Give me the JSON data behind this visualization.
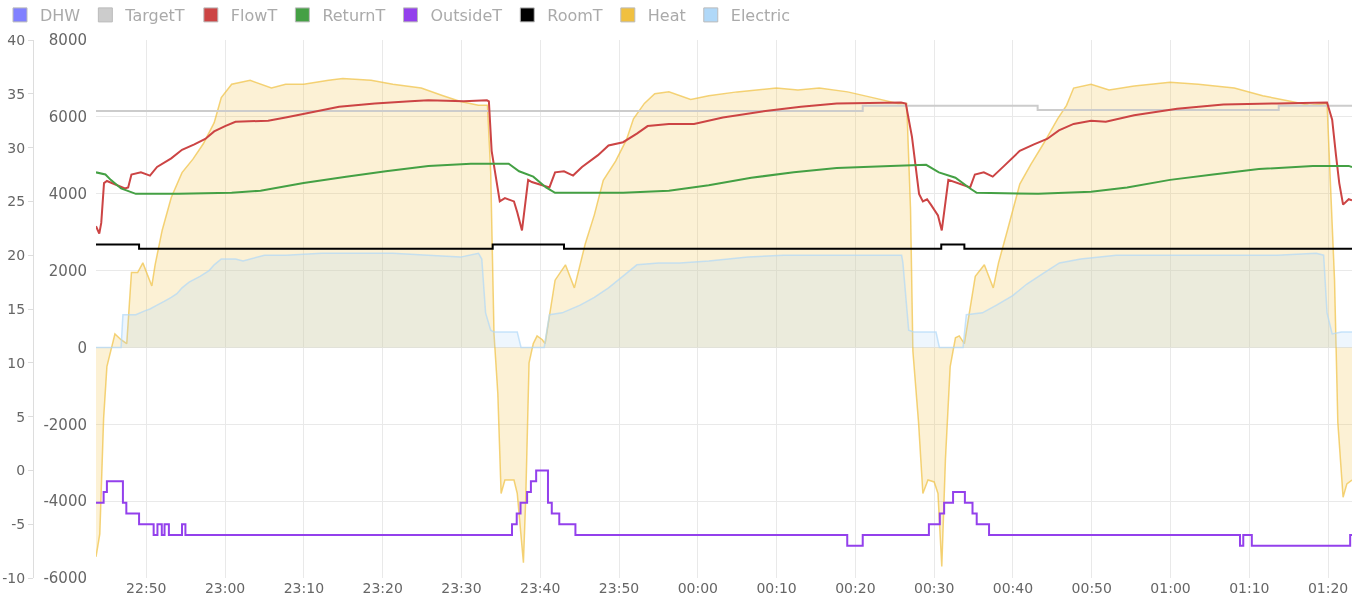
{
  "chart_data": {
    "type": "line",
    "legend": "top left",
    "grid": true,
    "xlim": [
      "2000-01-01T22:43:37",
      "2000-01-02T01:23:02"
    ],
    "xticks": [
      {
        "value": "2000-01-01T22:50",
        "label": "22:50"
      },
      {
        "value": "2000-01-01T23:00",
        "label": "23:00"
      },
      {
        "value": "2000-01-01T23:10",
        "label": "23:10"
      },
      {
        "value": "2000-01-01T23:20",
        "label": "23:20"
      },
      {
        "value": "2000-01-01T23:30",
        "label": "23:30"
      },
      {
        "value": "2000-01-01T23:40",
        "label": "23:40"
      },
      {
        "value": "2000-01-01T23:50",
        "label": "23:50"
      },
      {
        "value": "2000-01-02T00:00",
        "label": "00:00"
      },
      {
        "value": "2000-01-02T00:10",
        "label": "00:10"
      },
      {
        "value": "2000-01-02T00:20",
        "label": "00:20"
      },
      {
        "value": "2000-01-02T00:30",
        "label": "00:30"
      },
      {
        "value": "2000-01-02T00:40",
        "label": "00:40"
      },
      {
        "value": "2000-01-02T00:50",
        "label": "00:50"
      },
      {
        "value": "2000-01-02T01:00",
        "label": "01:00"
      },
      {
        "value": "2000-01-02T01:10",
        "label": "01:10"
      },
      {
        "value": "2000-01-02T01:20",
        "label": "01:20"
      }
    ],
    "ylim": [
      -10,
      40
    ],
    "yticks": [
      -10,
      -5,
      0,
      5,
      10,
      15,
      20,
      25,
      30,
      35,
      40
    ],
    "y2lim": [
      -6000,
      8000
    ],
    "y2ticks": [
      -6000,
      -4000,
      -2000,
      0,
      2000,
      4000,
      6000,
      8000
    ],
    "series": [
      {
        "name": "DHW",
        "type": "area",
        "axis": "y2",
        "color": "#8080ff"
      },
      {
        "name": "TargetT",
        "type": "step",
        "color": "#cccccc",
        "x": [
          "2000-01-01T22:43:37",
          "2000-01-02T00:20:56",
          "2000-01-02T00:43:08",
          "2000-01-02T01:13:44",
          "2000-01-02T01:23:02"
        ],
        "values": [
          33.4,
          33.9,
          33.5,
          33.9,
          33.9
        ]
      },
      {
        "name": "FlowT",
        "color": "#cc4444",
        "x": [
          "2000-01-01T22:43:37",
          "2000-01-01T22:44:02",
          "2000-01-01T22:44:17",
          "2000-01-01T22:44:38",
          "2000-01-01T22:45:00",
          "2000-01-01T22:47:17",
          "2000-01-01T22:47:42",
          "2000-01-01T22:48:07",
          "2000-01-01T22:49:19",
          "2000-01-01T22:50:28",
          "2000-01-01T22:51:22",
          "2000-01-01T22:53:10",
          "2000-01-01T22:54:32",
          "2000-01-01T22:56:06",
          "2000-01-01T22:57:29",
          "2000-01-01T22:58:37",
          "2000-01-01T23:00:00",
          "2000-01-01T23:01:19",
          "2000-01-01T23:05:28",
          "2000-01-01T23:07:41",
          "2000-01-01T23:10:23",
          "2000-01-01T23:14:28",
          "2000-01-01T23:19:01",
          "2000-01-01T23:23:31",
          "2000-01-01T23:25:48",
          "2000-01-01T23:30:18",
          "2000-01-01T23:33:14",
          "2000-01-01T23:33:29",
          "2000-01-01T23:33:50",
          "2000-01-01T23:34:52",
          "2000-01-01T23:35:31",
          "2000-01-01T23:36:40",
          "2000-01-01T23:37:05",
          "2000-01-01T23:37:41",
          "2000-01-01T23:38:28",
          "2000-01-01T23:38:56",
          "2000-01-01T23:41:10",
          "2000-01-01T23:41:53",
          "2000-01-01T23:43:01",
          "2000-01-01T23:44:10",
          "2000-01-01T23:45:18",
          "2000-01-01T23:47:20",
          "2000-01-01T23:48:40",
          "2000-01-01T23:50:31",
          "2000-01-01T23:52:16",
          "2000-01-01T23:53:38",
          "2000-01-01T23:56:20",
          "2000-01-01T23:59:31",
          "2000-01-02T00:03:11",
          "2000-01-02T00:08:35",
          "2000-01-02T00:13:05",
          "2000-01-02T00:17:38",
          "2000-01-02T00:25:48",
          "2000-01-02T00:26:24",
          "2000-01-02T00:27:11",
          "2000-01-02T00:28:05",
          "2000-01-02T00:28:34",
          "2000-01-02T00:29:06",
          "2000-01-02T00:29:35",
          "2000-01-02T00:30:29",
          "2000-01-02T00:30:58",
          "2000-01-02T00:31:48",
          "2000-01-02T00:34:34",
          "2000-01-02T00:35:10",
          "2000-01-02T00:36:18",
          "2000-01-02T00:37:26",
          "2000-01-02T00:38:53",
          "2000-01-02T00:40:52",
          "2000-01-02T00:42:40",
          "2000-01-02T00:44:20",
          "2000-01-02T00:45:50",
          "2000-01-02T00:47:42",
          "2000-01-02T00:49:55",
          "2000-01-02T00:51:47",
          "2000-01-02T00:55:23",
          "2000-01-02T01:00:50",
          "2000-01-02T01:06:43",
          "2000-01-02T01:13:30",
          "2000-01-02T01:19:52",
          "2000-01-02T01:20:31",
          "2000-01-02T01:21:00",
          "2000-01-02T01:21:25",
          "2000-01-02T01:21:54",
          "2000-01-02T01:22:37",
          "2000-01-02T01:23:02"
        ],
        "values": [
          22.7,
          22.0,
          23.0,
          26.7,
          26.9,
          26.2,
          26.3,
          27.5,
          27.7,
          27.4,
          28.2,
          29.0,
          29.8,
          30.3,
          30.8,
          31.5,
          32.0,
          32.4,
          32.5,
          32.8,
          33.2,
          33.8,
          34.1,
          34.3,
          34.4,
          34.3,
          34.4,
          34.3,
          29.7,
          25.0,
          25.3,
          25.0,
          24.0,
          22.3,
          27.0,
          26.8,
          26.3,
          27.7,
          27.8,
          27.4,
          28.2,
          29.3,
          30.2,
          30.5,
          31.3,
          32.0,
          32.2,
          32.2,
          32.8,
          33.4,
          33.8,
          34.1,
          34.2,
          34.1,
          31.0,
          25.7,
          25.0,
          25.2,
          24.7,
          23.7,
          22.3,
          27.0,
          26.3,
          27.5,
          27.7,
          27.3,
          28.3,
          29.7,
          30.3,
          30.8,
          31.6,
          32.2,
          32.5,
          32.4,
          33.0,
          33.6,
          34.0,
          34.1,
          34.2,
          32.6,
          29.3,
          26.7,
          24.7,
          25.2,
          25.1
        ]
      },
      {
        "name": "ReturnT",
        "color": "#44a044",
        "x": [
          "2000-01-01T22:43:37",
          "2000-01-01T22:44:49",
          "2000-01-01T22:45:29",
          "2000-01-01T22:46:48",
          "2000-01-01T22:48:40",
          "2000-01-01T22:54:04",
          "2000-01-01T23:00:50",
          "2000-01-01T23:04:30",
          "2000-01-01T23:09:58",
          "2000-01-01T23:15:22",
          "2000-01-01T23:20:24",
          "2000-01-01T23:25:48",
          "2000-01-01T23:31:12",
          "2000-01-01T23:36:00",
          "2000-01-01T23:37:19",
          "2000-01-01T23:39:07",
          "2000-01-01T23:40:44",
          "2000-01-01T23:41:53",
          "2000-01-01T23:45:54",
          "2000-01-01T23:50:31",
          "2000-01-01T23:56:20",
          "2000-01-02T00:01:23",
          "2000-01-02T00:06:47",
          "2000-01-02T00:12:11",
          "2000-01-02T00:17:38",
          "2000-01-02T00:24:29",
          "2000-01-02T00:28:59",
          "2000-01-02T00:30:36",
          "2000-01-02T00:32:42",
          "2000-01-02T00:34:34",
          "2000-01-02T00:35:24",
          "2000-01-02T00:43:12",
          "2000-01-02T00:49:55",
          "2000-01-02T00:54:29",
          "2000-01-02T00:59:56",
          "2000-01-02T01:05:24",
          "2000-01-02T01:11:13",
          "2000-01-02T01:18:04",
          "2000-01-02T01:22:37",
          "2000-01-02T01:23:02"
        ],
        "values": [
          27.7,
          27.5,
          27.0,
          26.2,
          25.7,
          25.7,
          25.8,
          26.0,
          26.7,
          27.3,
          27.8,
          28.3,
          28.5,
          28.5,
          27.8,
          27.3,
          26.3,
          25.8,
          25.8,
          25.8,
          26.0,
          26.5,
          27.2,
          27.7,
          28.1,
          28.3,
          28.4,
          27.7,
          27.2,
          26.2,
          25.8,
          25.7,
          25.9,
          26.3,
          27.0,
          27.5,
          28.0,
          28.3,
          28.3,
          28.2
        ]
      },
      {
        "name": "OutsideT",
        "type": "step",
        "color": "#9340ec",
        "x": [
          "2000-01-01T22:43:37",
          "2000-01-01T22:44:35",
          "2000-01-01T22:45:00",
          "2000-01-01T22:47:02",
          "2000-01-01T22:47:28",
          "2000-01-01T22:49:05",
          "2000-01-01T22:50:56",
          "2000-01-01T22:51:25",
          "2000-01-01T22:51:58",
          "2000-01-01T22:52:19",
          "2000-01-01T22:52:52",
          "2000-01-01T22:54:32",
          "2000-01-01T22:54:58",
          "2000-01-01T23:36:25",
          "2000-01-01T23:37:01",
          "2000-01-01T23:37:30",
          "2000-01-01T23:38:20",
          "2000-01-01T23:38:49",
          "2000-01-01T23:39:29",
          "2000-01-01T23:40:59",
          "2000-01-01T23:41:28",
          "2000-01-01T23:42:25",
          "2000-01-01T23:44:28",
          "2000-01-02T00:18:58",
          "2000-01-02T00:20:56",
          "2000-01-02T00:29:20",
          "2000-01-02T00:30:43",
          "2000-01-02T00:31:16",
          "2000-01-02T00:32:24",
          "2000-01-02T00:33:54",
          "2000-01-02T00:34:52",
          "2000-01-02T00:35:24",
          "2000-01-02T00:36:58",
          "2000-01-02T01:08:49",
          "2000-01-02T01:09:14",
          "2000-01-02T01:10:19",
          "2000-01-02T01:22:48",
          "2000-01-02T01:23:02"
        ],
        "values": [
          -3,
          -2,
          -1,
          -3,
          -4,
          -5,
          -6,
          -5,
          -6,
          -5,
          -6,
          -5,
          -6,
          -5,
          -4,
          -3,
          -2,
          -1,
          0,
          -3,
          -4,
          -5,
          -6,
          -7,
          -6,
          -5,
          -4,
          -3,
          -2,
          -3,
          -4,
          -5,
          -6,
          -7,
          -6,
          -7,
          -6,
          -6
        ]
      },
      {
        "name": "RoomT",
        "type": "step",
        "color": "#000000",
        "x": [
          "2000-01-01T22:43:37",
          "2000-01-01T22:49:05",
          "2000-01-01T23:33:58",
          "2000-01-01T23:43:01",
          "2000-01-02T00:30:54",
          "2000-01-02T00:33:50",
          "2000-01-02T01:23:02"
        ],
        "values": [
          21.0,
          20.6,
          21.0,
          20.6,
          21.0,
          20.6,
          20.6
        ]
      },
      {
        "name": "Heat",
        "type": "area",
        "axis": "y2",
        "color": "#f0c040",
        "x": [
          "2000-01-01T22:43:37",
          "2000-01-01T22:44:06",
          "2000-01-01T22:44:35",
          "2000-01-01T22:45:00",
          "2000-01-01T22:45:43",
          "2000-01-01T22:46:01",
          "2000-01-01T22:46:48",
          "2000-01-01T22:47:31",
          "2000-01-01T22:48:07",
          "2000-01-01T22:48:54",
          "2000-01-01T22:49:34",
          "2000-01-01T22:50:42",
          "2000-01-01T22:51:07",
          "2000-01-01T22:52:01",
          "2000-01-01T22:53:10",
          "2000-01-01T22:54:32",
          "2000-01-01T22:55:55",
          "2000-01-01T22:57:14",
          "2000-01-01T22:58:37",
          "2000-01-01T22:59:31",
          "2000-01-01T23:00:50",
          "2000-01-01T23:03:11",
          "2000-01-01T23:05:53",
          "2000-01-01T23:07:41",
          "2000-01-01T23:09:58",
          "2000-01-01T23:13:08",
          "2000-01-01T23:14:56",
          "2000-01-01T23:18:32",
          "2000-01-01T23:21:18",
          "2000-01-01T23:24:54",
          "2000-01-01T23:27:40",
          "2000-01-01T23:29:53",
          "2000-01-01T23:32:10",
          "2000-01-01T23:33:18",
          "2000-01-01T23:33:43",
          "2000-01-01T23:34:08",
          "2000-01-01T23:34:37",
          "2000-01-01T23:35:02",
          "2000-01-01T23:35:31",
          "2000-01-01T23:36:40",
          "2000-01-01T23:37:05",
          "2000-01-01T23:37:52",
          "2000-01-01T23:38:10",
          "2000-01-01T23:38:35",
          "2000-01-01T23:39:07",
          "2000-01-01T23:39:36",
          "2000-01-01T23:40:16",
          "2000-01-01T23:40:37",
          "2000-01-01T23:41:53",
          "2000-01-01T23:43:12",
          "2000-01-01T23:44:20",
          "2000-01-01T23:45:43",
          "2000-01-01T23:46:52",
          "2000-01-01T23:48:00",
          "2000-01-01T23:49:34",
          "2000-01-01T23:50:56",
          "2000-01-01T23:51:50",
          "2000-01-01T23:53:13",
          "2000-01-01T23:54:32",
          "2000-01-01T23:56:20",
          "2000-01-01T23:59:06",
          "2000-01-02T00:01:23",
          "2000-01-02T00:04:59",
          "2000-01-02T00:09:58",
          "2000-01-02T00:12:43",
          "2000-01-02T00:15:25",
          "2000-01-02T00:19:01",
          "2000-01-02T00:22:12",
          "2000-01-02T00:25:23",
          "2000-01-02T00:26:31",
          "2000-01-02T00:27:00",
          "2000-01-02T00:27:18",
          "2000-01-02T00:28:01",
          "2000-01-02T00:28:34",
          "2000-01-02T00:29:13",
          "2000-01-02T00:30:00",
          "2000-01-02T00:30:29",
          "2000-01-02T00:30:58",
          "2000-01-02T00:31:26",
          "2000-01-02T00:32:02",
          "2000-01-02T00:32:42",
          "2000-01-02T00:33:11",
          "2000-01-02T00:33:50",
          "2000-01-02T00:35:13",
          "2000-01-02T00:36:22",
          "2000-01-02T00:37:30",
          "2000-01-02T00:38:10",
          "2000-01-02T00:39:18",
          "2000-01-02T00:40:52",
          "2000-01-02T00:42:14",
          "2000-01-02T00:43:52",
          "2000-01-02T00:45:40",
          "2000-01-02T00:46:48",
          "2000-01-02T00:47:42",
          "2000-01-02T00:49:55",
          "2000-01-02T00:52:12",
          "2000-01-02T00:55:23",
          "2000-01-02T00:59:56",
          "2000-01-02T01:03:32",
          "2000-01-02T01:08:06",
          "2000-01-02T01:11:42",
          "2000-01-02T01:15:22",
          "2000-01-02T01:17:38",
          "2000-01-02T01:19:52",
          "2000-01-02T01:20:49",
          "2000-01-02T01:21:14",
          "2000-01-02T01:21:54",
          "2000-01-02T01:22:23",
          "2000-01-02T01:23:02"
        ],
        "values": [
          -5450,
          -4850,
          -1850,
          -500,
          100,
          350,
          200,
          100,
          1950,
          1950,
          2200,
          1600,
          2150,
          3050,
          3900,
          4550,
          4900,
          5300,
          5850,
          6500,
          6850,
          6950,
          6750,
          6850,
          6850,
          6950,
          7000,
          6950,
          6850,
          6750,
          6550,
          6400,
          6300,
          6300,
          4550,
          350,
          -1200,
          -3800,
          -3450,
          -3450,
          -3800,
          -5600,
          -3900,
          -400,
          100,
          300,
          200,
          100,
          1750,
          2150,
          1550,
          2700,
          3450,
          4350,
          4850,
          5400,
          5950,
          6350,
          6600,
          6650,
          6450,
          6550,
          6650,
          6750,
          6700,
          6750,
          6650,
          6500,
          6350,
          6350,
          3600,
          -100,
          -1950,
          -3800,
          -3450,
          -3500,
          -3800,
          -5700,
          -2900,
          -500,
          250,
          300,
          100,
          1850,
          2150,
          1550,
          2200,
          3050,
          4250,
          4750,
          5300,
          5950,
          6300,
          6750,
          6850,
          6700,
          6800,
          6900,
          6850,
          6750,
          6550,
          6400,
          6300,
          6350,
          1750,
          -1950,
          -3900,
          -3550,
          -3450
        ]
      },
      {
        "name": "Electric",
        "type": "area",
        "axis": "y2",
        "color": "#b0d8f8",
        "x": [
          "2000-01-01T22:43:37",
          "2000-01-01T22:46:48",
          "2000-01-01T22:47:02",
          "2000-01-01T22:48:40",
          "2000-01-01T22:49:48",
          "2000-01-01T22:50:28",
          "2000-01-01T22:51:22",
          "2000-01-01T22:52:16",
          "2000-01-01T22:53:10",
          "2000-01-01T22:53:53",
          "2000-01-01T22:54:32",
          "2000-01-01T22:55:26",
          "2000-01-01T22:56:49",
          "2000-01-01T22:57:58",
          "2000-01-01T22:58:37",
          "2000-01-01T22:59:31",
          "2000-01-01T23:01:19",
          "2000-01-01T23:02:17",
          "2000-01-01T23:04:59",
          "2000-01-01T23:07:41",
          "2000-01-01T23:12:14",
          "2000-01-01T23:21:18",
          "2000-01-01T23:25:48",
          "2000-01-01T23:29:53",
          "2000-01-01T23:32:10",
          "2000-01-01T23:32:35",
          "2000-01-01T23:33:04",
          "2000-01-01T23:33:43",
          "2000-01-01T23:34:08",
          "2000-01-01T23:37:05",
          "2000-01-01T23:37:34",
          "2000-01-01T23:40:30",
          "2000-01-01T23:41:10",
          "2000-01-01T23:42:47",
          "2000-01-01T23:45:04",
          "2000-01-01T23:46:52",
          "2000-01-01T23:48:40",
          "2000-01-01T23:50:28",
          "2000-01-01T23:52:16",
          "2000-01-01T23:55:01",
          "2000-01-01T23:57:43",
          "2000-01-02T00:01:23",
          "2000-01-02T00:06:22",
          "2000-01-02T00:10:52",
          "2000-01-02T00:17:38",
          "2000-01-02T00:25:52",
          "2000-01-02T00:26:02",
          "2000-01-02T00:26:46",
          "2000-01-02T00:27:25",
          "2000-01-02T00:30:14",
          "2000-01-02T00:30:40",
          "2000-01-02T00:33:40",
          "2000-01-02T00:34:05",
          "2000-01-02T00:36:07",
          "2000-01-02T00:37:55",
          "2000-01-02T00:39:58",
          "2000-01-02T00:41:46",
          "2000-01-02T00:44:02",
          "2000-01-02T00:45:54",
          "2000-01-02T00:48:36",
          "2000-01-02T00:53:06",
          "2000-01-02T01:13:30",
          "2000-01-02T01:18:29",
          "2000-01-02T01:19:26",
          "2000-01-02T01:19:52",
          "2000-01-02T01:20:31",
          "2000-01-02T01:21:40",
          "2000-01-02T01:23:02"
        ],
        "values": [
          0,
          0,
          850,
          850,
          950,
          1000,
          1100,
          1200,
          1300,
          1400,
          1550,
          1700,
          1850,
          2000,
          2150,
          2300,
          2300,
          2250,
          2400,
          2400,
          2450,
          2450,
          2400,
          2350,
          2450,
          2300,
          900,
          450,
          400,
          400,
          0,
          0,
          850,
          900,
          1100,
          1300,
          1550,
          1850,
          2150,
          2200,
          2200,
          2250,
          2350,
          2400,
          2400,
          2400,
          2200,
          450,
          400,
          400,
          0,
          0,
          850,
          900,
          1100,
          1350,
          1650,
          1950,
          2200,
          2300,
          2400,
          2400,
          2450,
          2400,
          900,
          350,
          400,
          400
        ]
      }
    ]
  }
}
